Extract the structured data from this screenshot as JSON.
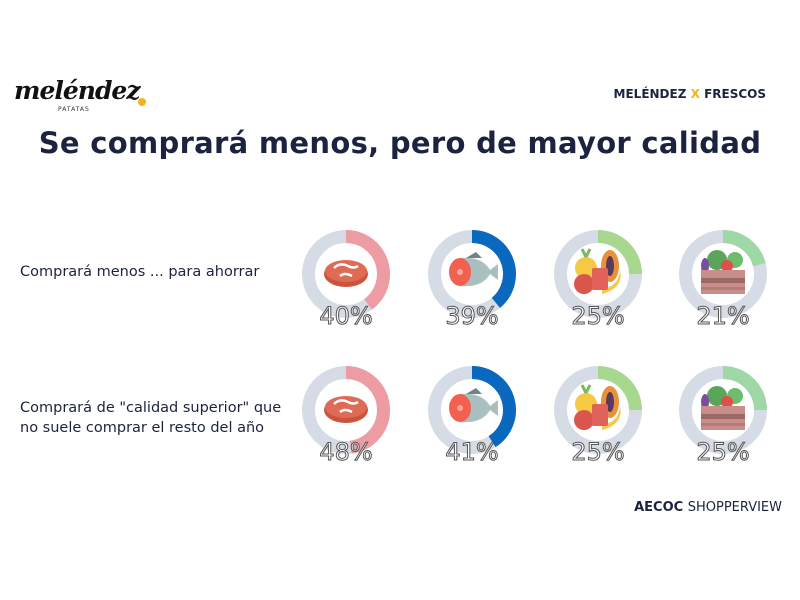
{
  "header": {
    "logo_text": "meléndez",
    "logo_sub": "PATATAS",
    "brand_left": "MELÉNDEZ",
    "brand_x": "X",
    "brand_right": "FRESCOS",
    "title": "Se comprará menos, pero de mayor calidad"
  },
  "footer": {
    "source_bold": "AECOC",
    "source_rest": "SHOPPERVIEW"
  },
  "chart_data": {
    "type": "donut",
    "categories": [
      "carne",
      "pescado",
      "fruta",
      "verdura"
    ],
    "icons": [
      "steak-icon",
      "fish-icon",
      "fruit-icon",
      "vegetable-crate-icon"
    ],
    "colors": [
      "#ee9ca3",
      "#0a68be",
      "#a8d88f",
      "#9fd8a6"
    ],
    "track_color": "#d6dce6",
    "rows": [
      {
        "label": "Comprará menos ... para ahorrar",
        "values": [
          40,
          39,
          25,
          21
        ],
        "labels": [
          "40%",
          "39%",
          "25%",
          "21%"
        ]
      },
      {
        "label": "Comprará de \"calidad superior\" que no suele comprar el resto del año",
        "values": [
          48,
          41,
          25,
          25
        ],
        "labels": [
          "48%",
          "41%",
          "25%",
          "25%"
        ]
      }
    ]
  }
}
